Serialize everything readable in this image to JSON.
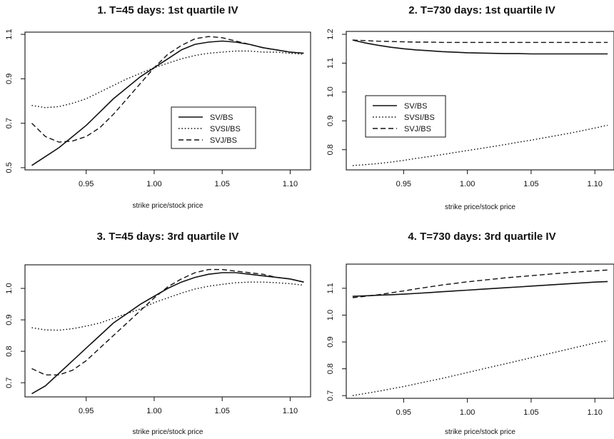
{
  "chart_data": [
    {
      "type": "line",
      "title": "1. T=45 days: 1st quartile IV",
      "xlabel": "strike price/stock price",
      "ylabel": "",
      "xlim": [
        0.905,
        1.115
      ],
      "ylim": [
        0.49,
        1.11
      ],
      "x_ticks": [
        "0.95",
        "1.00",
        "1.05",
        "1.10"
      ],
      "y_ticks": [
        "0.5",
        "0.7",
        "0.9",
        "1.1"
      ],
      "legend_position": "center-right",
      "x": [
        0.91,
        0.92,
        0.93,
        0.94,
        0.95,
        0.96,
        0.97,
        0.98,
        0.99,
        1.0,
        1.01,
        1.02,
        1.03,
        1.04,
        1.05,
        1.06,
        1.07,
        1.08,
        1.09,
        1.1,
        1.11
      ],
      "series": [
        {
          "name": "SV/BS",
          "style": "solid",
          "values": [
            0.51,
            0.55,
            0.59,
            0.64,
            0.69,
            0.75,
            0.81,
            0.86,
            0.91,
            0.95,
            0.99,
            1.03,
            1.055,
            1.065,
            1.07,
            1.065,
            1.055,
            1.04,
            1.03,
            1.02,
            1.015
          ]
        },
        {
          "name": "SVSI/BS",
          "style": "dotted",
          "values": [
            0.78,
            0.77,
            0.775,
            0.79,
            0.81,
            0.84,
            0.87,
            0.9,
            0.925,
            0.95,
            0.97,
            0.99,
            1.005,
            1.015,
            1.02,
            1.025,
            1.025,
            1.02,
            1.02,
            1.015,
            1.01
          ]
        },
        {
          "name": "SVJ/BS",
          "style": "dashed",
          "values": [
            0.7,
            0.64,
            0.615,
            0.62,
            0.64,
            0.68,
            0.74,
            0.81,
            0.88,
            0.95,
            1.01,
            1.05,
            1.08,
            1.09,
            1.085,
            1.07,
            1.055,
            1.04,
            1.03,
            1.02,
            1.015
          ]
        }
      ]
    },
    {
      "type": "line",
      "title": "2. T=730 days: 1st quartile IV",
      "xlabel": "strike price/stock price",
      "ylabel": "",
      "xlim": [
        0.905,
        1.115
      ],
      "ylim": [
        0.73,
        1.21
      ],
      "x_ticks": [
        "0.95",
        "1.00",
        "1.05",
        "1.10"
      ],
      "y_ticks": [
        "0.8",
        "0.9",
        "1.0",
        "1.1",
        "1.2"
      ],
      "legend_position": "center-left",
      "x": [
        0.91,
        0.92,
        0.93,
        0.94,
        0.95,
        0.96,
        0.97,
        0.98,
        0.99,
        1.0,
        1.01,
        1.02,
        1.03,
        1.04,
        1.05,
        1.06,
        1.07,
        1.08,
        1.09,
        1.1,
        1.11
      ],
      "series": [
        {
          "name": "SV/BS",
          "style": "solid",
          "values": [
            1.18,
            1.17,
            1.162,
            1.155,
            1.15,
            1.146,
            1.143,
            1.14,
            1.138,
            1.136,
            1.135,
            1.134,
            1.133,
            1.133,
            1.132,
            1.132,
            1.132,
            1.132,
            1.132,
            1.132,
            1.132
          ]
        },
        {
          "name": "SVSI/BS",
          "style": "dotted",
          "values": [
            0.745,
            0.748,
            0.752,
            0.757,
            0.763,
            0.77,
            0.776,
            0.783,
            0.79,
            0.797,
            0.804,
            0.811,
            0.818,
            0.826,
            0.833,
            0.841,
            0.849,
            0.857,
            0.866,
            0.875,
            0.885
          ]
        },
        {
          "name": "SVJ/BS",
          "style": "dashed",
          "values": [
            1.18,
            1.178,
            1.176,
            1.175,
            1.174,
            1.173,
            1.173,
            1.172,
            1.172,
            1.172,
            1.172,
            1.172,
            1.172,
            1.172,
            1.172,
            1.172,
            1.172,
            1.172,
            1.172,
            1.172,
            1.172
          ]
        }
      ]
    },
    {
      "type": "line",
      "title": "3. T=45 days: 3rd quartile IV",
      "xlabel": "strike price/stock price",
      "ylabel": "",
      "xlim": [
        0.905,
        1.115
      ],
      "ylim": [
        0.655,
        1.075
      ],
      "x_ticks": [
        "0.95",
        "1.00",
        "1.05",
        "1.10"
      ],
      "y_ticks": [
        "0.7",
        "0.8",
        "0.9",
        "1.0"
      ],
      "legend_position": "none",
      "x": [
        0.91,
        0.92,
        0.93,
        0.94,
        0.95,
        0.96,
        0.97,
        0.98,
        0.99,
        1.0,
        1.01,
        1.02,
        1.03,
        1.04,
        1.05,
        1.06,
        1.07,
        1.08,
        1.09,
        1.1,
        1.11
      ],
      "series": [
        {
          "name": "SV/BS",
          "style": "solid",
          "values": [
            0.665,
            0.69,
            0.73,
            0.77,
            0.81,
            0.85,
            0.89,
            0.92,
            0.95,
            0.975,
            1.0,
            1.02,
            1.035,
            1.045,
            1.05,
            1.05,
            1.045,
            1.04,
            1.035,
            1.03,
            1.02
          ]
        },
        {
          "name": "SVSI/BS",
          "style": "dotted",
          "values": [
            0.875,
            0.868,
            0.867,
            0.872,
            0.88,
            0.89,
            0.905,
            0.92,
            0.935,
            0.955,
            0.97,
            0.985,
            0.998,
            1.007,
            1.013,
            1.018,
            1.02,
            1.02,
            1.018,
            1.015,
            1.01
          ]
        },
        {
          "name": "SVJ/BS",
          "style": "dashed",
          "values": [
            0.745,
            0.725,
            0.725,
            0.74,
            0.77,
            0.81,
            0.85,
            0.89,
            0.93,
            0.97,
            1.005,
            1.03,
            1.05,
            1.06,
            1.06,
            1.055,
            1.05,
            1.045,
            1.035,
            1.03,
            1.02
          ]
        }
      ]
    },
    {
      "type": "line",
      "title": "4. T=730 days: 3rd quartile IV",
      "xlabel": "strike price/stock price",
      "ylabel": "",
      "xlim": [
        0.905,
        1.115
      ],
      "ylim": [
        0.69,
        1.19
      ],
      "x_ticks": [
        "0.95",
        "1.00",
        "1.05",
        "1.10"
      ],
      "y_ticks": [
        "0.7",
        "0.8",
        "0.9",
        "1.0",
        "1.1"
      ],
      "legend_position": "none",
      "x": [
        0.91,
        0.92,
        0.93,
        0.94,
        0.95,
        0.96,
        0.97,
        0.98,
        0.99,
        1.0,
        1.01,
        1.02,
        1.03,
        1.04,
        1.05,
        1.06,
        1.07,
        1.08,
        1.09,
        1.1,
        1.11
      ],
      "series": [
        {
          "name": "SV/BS",
          "style": "solid",
          "values": [
            1.07,
            1.072,
            1.074,
            1.076,
            1.078,
            1.081,
            1.084,
            1.087,
            1.09,
            1.093,
            1.096,
            1.099,
            1.102,
            1.105,
            1.108,
            1.111,
            1.114,
            1.117,
            1.12,
            1.123,
            1.125
          ]
        },
        {
          "name": "SVSI/BS",
          "style": "dotted",
          "values": [
            0.7,
            0.708,
            0.716,
            0.725,
            0.734,
            0.744,
            0.754,
            0.764,
            0.775,
            0.786,
            0.797,
            0.808,
            0.819,
            0.83,
            0.841,
            0.852,
            0.863,
            0.874,
            0.885,
            0.896,
            0.905
          ]
        },
        {
          "name": "SVJ/BS",
          "style": "dashed",
          "values": [
            1.065,
            1.07,
            1.076,
            1.083,
            1.09,
            1.098,
            1.105,
            1.112,
            1.118,
            1.124,
            1.129,
            1.134,
            1.139,
            1.143,
            1.147,
            1.151,
            1.155,
            1.159,
            1.162,
            1.165,
            1.168
          ]
        }
      ]
    }
  ]
}
